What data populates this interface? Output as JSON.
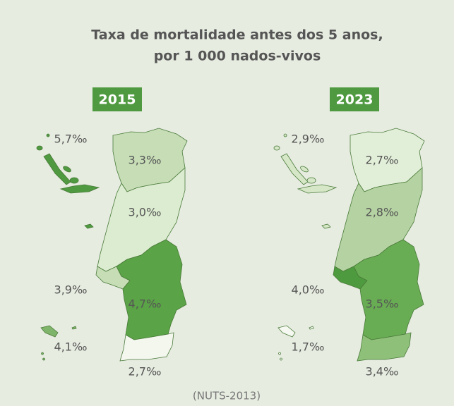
{
  "title": [
    "Taxa de mortalidade antes dos 5 anos,",
    "por 1 000 nados-vivos"
  ],
  "maps": [
    {
      "year": "2015",
      "regions": [
        {
          "label": "5,7‰",
          "color": "#4f9a40"
        },
        {
          "label": "3,3‰",
          "color": "#c6ddb6"
        },
        {
          "label": "3,0‰",
          "color": "#dcecd0"
        },
        {
          "label": "3,9‰",
          "color": "#c6ddb6"
        },
        {
          "label": "4,7‰",
          "color": "#5aa346"
        },
        {
          "label": "4,1‰",
          "color": "#7fb56a"
        },
        {
          "label": "2,7‰",
          "color": "#f3f7ee"
        }
      ]
    },
    {
      "year": "2023",
      "regions": [
        {
          "label": "2,9‰",
          "color": "#d5e7c7"
        },
        {
          "label": "2,7‰",
          "color": "#e2efd8"
        },
        {
          "label": "2,8‰",
          "color": "#b5d3a2"
        },
        {
          "label": "4,0‰",
          "color": "#4e9a3e"
        },
        {
          "label": "3,5‰",
          "color": "#68ad53"
        },
        {
          "label": "1,7‰",
          "color": "#f6f9f1"
        },
        {
          "label": "3,4‰",
          "color": "#8fc07a"
        }
      ]
    }
  ],
  "footer": "(NUTS-2013)"
}
